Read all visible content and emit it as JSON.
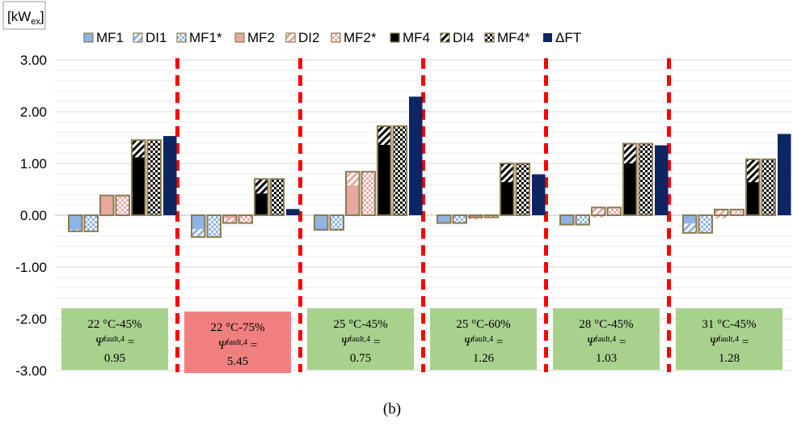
{
  "chart_data": {
    "type": "bar",
    "unit_label": "[kWex]",
    "unit_base": "[kW",
    "unit_sub": "ex",
    "unit_close": "]",
    "ylim": [
      -3,
      3
    ],
    "yticks": [
      "3.00",
      "2.00",
      "1.00",
      "0.00",
      "-1.00",
      "-2.00",
      "-3.00"
    ],
    "ytick_values": [
      3,
      2,
      1,
      0,
      -1,
      -2,
      -3
    ],
    "grid": true,
    "legend_position": "top",
    "caption": "(b)",
    "series_order": [
      "MF1",
      "DI1",
      "MF1*",
      "MF2",
      "DI2",
      "MF2*",
      "MF4",
      "DI4",
      "MF4*",
      "ΔFT"
    ],
    "legend": [
      {
        "name": "MF1",
        "pattern": "solid",
        "color": "#8eb4e3"
      },
      {
        "name": "DI1",
        "pattern": "diag",
        "color": "#8eb4e3"
      },
      {
        "name": "MF1*",
        "pattern": "check",
        "color": "#8eb4e3"
      },
      {
        "name": "MF2",
        "pattern": "solid",
        "color": "#e6a9a0"
      },
      {
        "name": "DI2",
        "pattern": "diag",
        "color": "#e6a9a0"
      },
      {
        "name": "MF2*",
        "pattern": "check",
        "color": "#e6a9a0"
      },
      {
        "name": "MF4",
        "pattern": "solid",
        "color": "#000000"
      },
      {
        "name": "DI4",
        "pattern": "diag",
        "color": "#000000"
      },
      {
        "name": "MF4*",
        "pattern": "check",
        "color": "#000000"
      },
      {
        "name": "ΔFT",
        "pattern": "solid",
        "color": "#0d2561"
      }
    ],
    "groups": [
      {
        "condition": "22 °C-45%",
        "psi_symbol": "Ψ",
        "psi_sub": "fault,4",
        "psi_eq": " =",
        "psi_value": "0.95",
        "box_color": "#a9d18e",
        "MF1": -0.28,
        "DI1": -0.31,
        "MF1*": -0.31,
        "MF2": 0.36,
        "DI2": 0.38,
        "MF2*": 0.38,
        "MF4": 1.12,
        "DI4": 1.45,
        "MF4*": 1.45,
        "FT": 1.53
      },
      {
        "condition": "22 °C-75%",
        "psi_symbol": "Ψ",
        "psi_sub": "fault,4",
        "psi_eq": " =",
        "psi_value": "5.45",
        "box_color": "#f08080",
        "MF1": -0.27,
        "DI1": -0.42,
        "MF1*": -0.42,
        "MF2": -0.06,
        "DI2": -0.15,
        "MF2*": -0.15,
        "MF4": 0.42,
        "DI4": 0.7,
        "MF4*": 0.7,
        "FT": 0.12
      },
      {
        "condition": "25 °C-45%",
        "psi_symbol": "Ψ",
        "psi_sub": "fault,4",
        "psi_eq": " =",
        "psi_value": "0.75",
        "box_color": "#a9d18e",
        "MF1": -0.3,
        "DI1": -0.28,
        "MF1*": -0.28,
        "MF2": 0.58,
        "DI2": 0.84,
        "MF2*": 0.84,
        "MF4": 1.36,
        "DI4": 1.72,
        "MF4*": 1.72,
        "FT": 2.29
      },
      {
        "condition": "25 °C-60%",
        "psi_symbol": "Ψ",
        "psi_sub": "fault,4",
        "psi_eq": " =",
        "psi_value": "1.26",
        "box_color": "#a9d18e",
        "MF1": -0.15,
        "DI1": -0.15,
        "MF1*": -0.15,
        "MF2": -0.08,
        "DI2": -0.04,
        "MF2*": -0.04,
        "MF4": 0.64,
        "DI4": 1.0,
        "MF4*": 1.0,
        "FT": 0.79
      },
      {
        "condition": "28 °C-45%",
        "psi_symbol": "Ψ",
        "psi_sub": "fault,4",
        "psi_eq": " =",
        "psi_value": "1.03",
        "box_color": "#a9d18e",
        "MF1": -0.18,
        "DI1": -0.18,
        "MF1*": -0.18,
        "MF2": -0.04,
        "DI2": 0.15,
        "MF2*": 0.15,
        "MF4": 1.0,
        "DI4": 1.38,
        "MF4*": 1.38,
        "FT": 1.35
      },
      {
        "condition": "31 °C-45%",
        "psi_symbol": "Ψ",
        "psi_sub": "fault,4",
        "psi_eq": " =",
        "psi_value": "1.28",
        "box_color": "#a9d18e",
        "MF1": -0.16,
        "DI1": -0.34,
        "MF1*": -0.34,
        "MF2": -0.06,
        "DI2": 0.11,
        "MF2*": 0.11,
        "MF4": 0.64,
        "DI4": 1.08,
        "MF4*": 1.08,
        "FT": 1.57
      }
    ]
  }
}
